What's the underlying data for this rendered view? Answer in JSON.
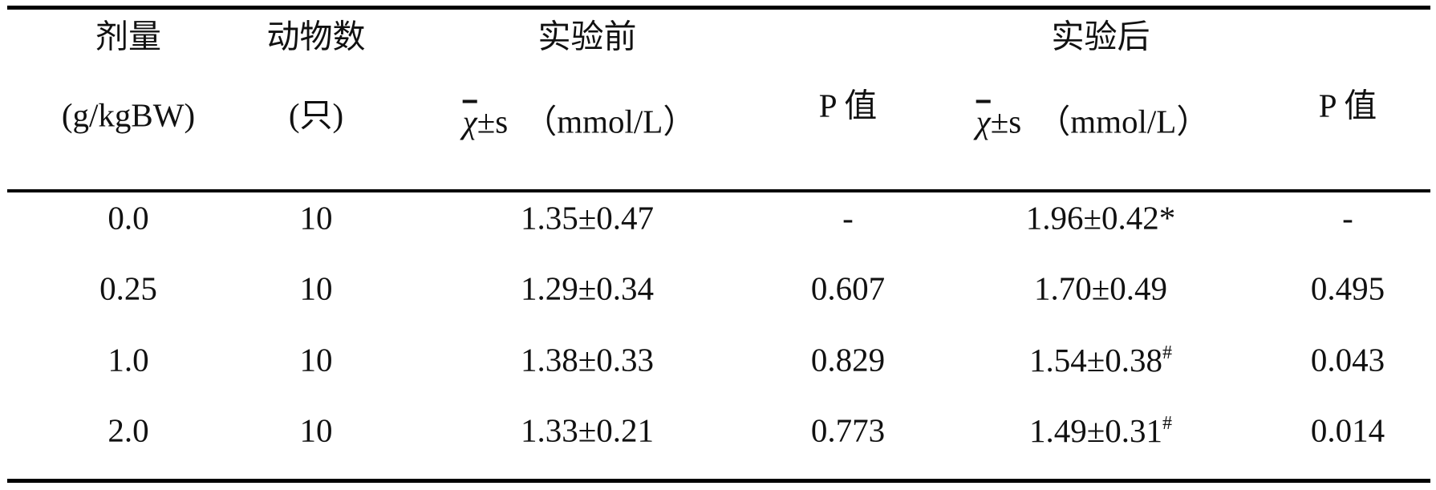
{
  "symbols": {
    "pm": "±",
    "chi": "χ"
  },
  "table": {
    "header": [
      [
        "剂量",
        "动物数",
        "实验前",
        "实验后"
      ],
      [
        "(g/kgBW)",
        "(只)",
        {
          "stat": "s",
          "unit": "（mmol/L）"
        },
        "P 值",
        {
          "stat": "s",
          "unit": "（mmol/L）"
        },
        "P 值"
      ]
    ],
    "rows": [
      [
        "0.0",
        "10",
        {
          "mean": "1.35",
          "sd": "0.47"
        },
        "-",
        {
          "mean": "1.96",
          "sd": "0.42",
          "suffix": "*"
        },
        "-"
      ],
      [
        "0.25",
        "10",
        {
          "mean": "1.29",
          "sd": "0.34"
        },
        "0.607",
        {
          "mean": "1.70",
          "sd": "0.49"
        },
        "0.495"
      ],
      [
        "1.0",
        "10",
        {
          "mean": "1.38",
          "sd": "0.33"
        },
        "0.829",
        {
          "mean": "1.54",
          "sd": "0.38",
          "sup": "#"
        },
        "0.043"
      ],
      [
        "2.0",
        "10",
        {
          "mean": "1.33",
          "sd": "0.21"
        },
        "0.773",
        {
          "mean": "1.49",
          "sd": "0.31",
          "sup": "#"
        },
        "0.014"
      ]
    ]
  }
}
